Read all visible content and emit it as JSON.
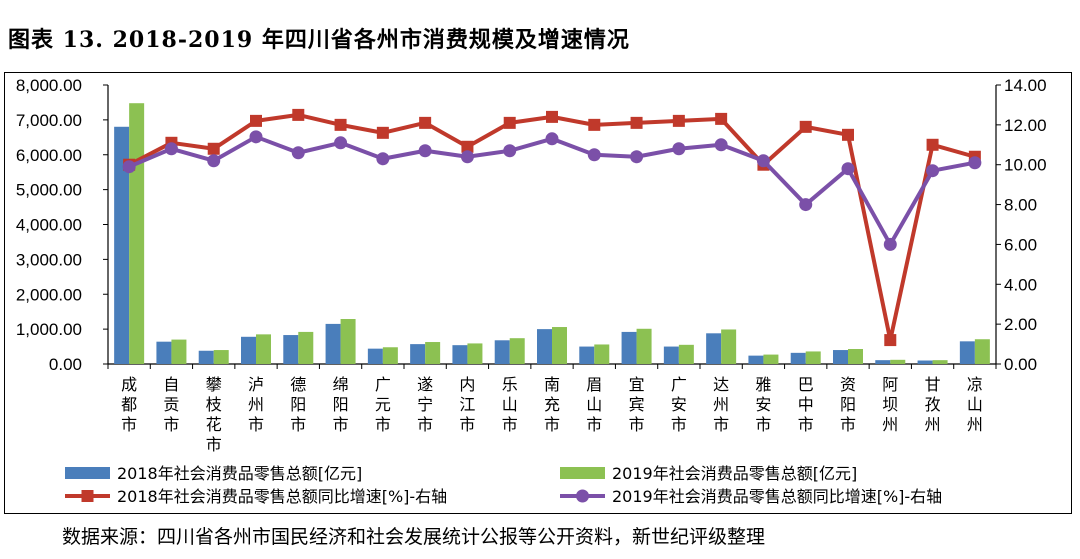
{
  "figure_title": "图表 13. 2018-2019 年四川省各州市消费规模及增速情况",
  "source_note": "数据来源：四川省各州市国民经济和社会发展统计公报等公开资料，新世纪评级整理",
  "chart_data": {
    "type": "bar",
    "categories": [
      "成都市",
      "自贡市",
      "攀枝花市",
      "泸州市",
      "德阳市",
      "绵阳市",
      "广元市",
      "遂宁市",
      "内江市",
      "乐山市",
      "南充市",
      "眉山市",
      "宜宾市",
      "广安市",
      "达州市",
      "雅安市",
      "巴中市",
      "资阳市",
      "阿坝州",
      "甘孜州",
      "凉山州"
    ],
    "y_left": {
      "lim": [
        0,
        8000
      ],
      "ticks": [
        "0.00",
        "1,000.00",
        "2,000.00",
        "3,000.00",
        "4,000.00",
        "5,000.00",
        "6,000.00",
        "7,000.00",
        "8,000.00"
      ]
    },
    "y_right": {
      "lim": [
        0,
        14
      ],
      "ticks": [
        "0.00",
        "2.00",
        "4.00",
        "6.00",
        "8.00",
        "10.00",
        "12.00",
        "14.00"
      ]
    },
    "series": [
      {
        "name": "2018年社会消费品零售总额[亿元]",
        "type": "bar",
        "axis": "left",
        "color": "#4a7ebb",
        "values": [
          6802,
          640,
          380,
          780,
          830,
          1150,
          440,
          570,
          540,
          680,
          1000,
          500,
          920,
          500,
          880,
          240,
          320,
          400,
          110,
          100,
          650
        ]
      },
      {
        "name": "2019年社会消费品零售总额[亿元]",
        "type": "bar",
        "axis": "left",
        "color": "#8cc152",
        "values": [
          7478,
          700,
          400,
          850,
          920,
          1290,
          480,
          630,
          590,
          740,
          1060,
          560,
          1010,
          550,
          990,
          270,
          360,
          430,
          120,
          110,
          710
        ]
      },
      {
        "name": "2018年社会消费品零售总额同比增速[%]-右轴",
        "type": "line",
        "axis": "right",
        "color": "#c0392b",
        "marker": "square",
        "values": [
          10.0,
          11.1,
          10.8,
          12.2,
          12.5,
          12.0,
          11.6,
          12.1,
          10.9,
          12.1,
          12.4,
          12.0,
          12.1,
          12.2,
          12.3,
          10.0,
          11.9,
          11.5,
          1.2,
          11.0,
          10.4
        ]
      },
      {
        "name": "2019年社会消费品零售总额同比增速[%]-右轴",
        "type": "line",
        "axis": "right",
        "color": "#7b50a8",
        "marker": "circle",
        "values": [
          9.9,
          10.8,
          10.2,
          11.4,
          10.6,
          11.1,
          10.3,
          10.7,
          10.4,
          10.7,
          11.3,
          10.5,
          10.4,
          10.8,
          11.0,
          10.2,
          8.0,
          9.8,
          6.0,
          9.7,
          10.1
        ]
      }
    ],
    "legend_position": "bottom"
  }
}
